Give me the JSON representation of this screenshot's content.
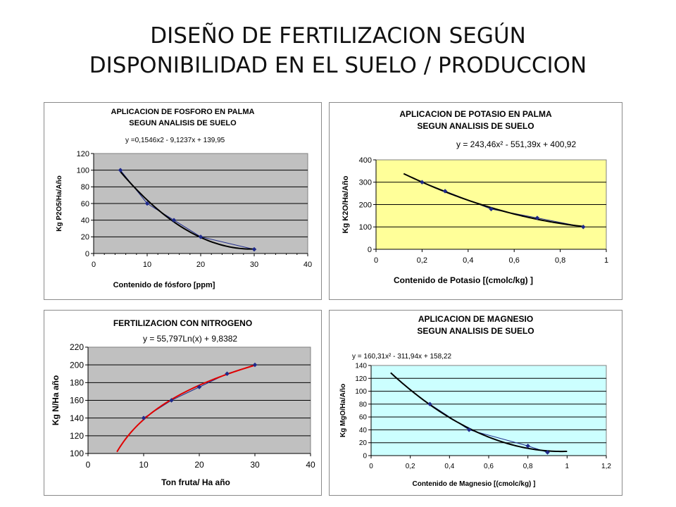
{
  "slide": {
    "title_line1": "DISEÑO DE FERTILIZACION SEGÚN",
    "title_line2": "DISPONIBILIDAD EN EL SUELO / PRODUCCION"
  },
  "colors": {
    "phosphorus_bg": "#c0c0c0",
    "potassium_bg": "#ffff99",
    "nitrogen_bg": "#c0c0c0",
    "magnesium_bg": "#ccffff",
    "marker": "#1f2a8a",
    "nitrogen_trend": "#e00000",
    "trend": "#000000"
  },
  "chart_data": [
    {
      "type": "scatter",
      "id": "phosphorus",
      "title": [
        "APLICACION DE FOSFORO EN PALMA",
        "SEGUN ANALISIS DE SUELO"
      ],
      "equation": "y =0,1546x2 - 9,1237x + 139,95",
      "xlabel": "Contenido de fósforo [ppm]",
      "ylabel": "Kg P2O5/Ha/Año",
      "xlim": [
        0,
        40
      ],
      "ylim": [
        0,
        120
      ],
      "xticks": [
        0,
        10,
        20,
        30,
        40
      ],
      "yticks": [
        0,
        20,
        40,
        60,
        80,
        100,
        120
      ],
      "xtick_labels": [
        "0",
        "10",
        "20",
        "30",
        "40"
      ],
      "ytick_labels": [
        "0",
        "20",
        "40",
        "60",
        "80",
        "100",
        "120"
      ],
      "minor_ticks": true,
      "x": [
        5,
        10,
        15,
        20,
        30
      ],
      "y": [
        100,
        60,
        40,
        20,
        5
      ],
      "trend": {
        "kind": "poly2",
        "coeffs": [
          0.1546,
          -9.1237,
          139.95
        ],
        "range": [
          5,
          30
        ]
      }
    },
    {
      "type": "scatter",
      "id": "potassium",
      "title": [
        "APLICACION DE POTASIO EN PALMA",
        "SEGUN ANALISIS DE SUELO"
      ],
      "equation": "y = 243,46x² - 551,39x + 400,92",
      "xlabel": "Contenido de Potasio [(cmolc/kg) ]",
      "ylabel": "Kg K2O/Ha/Año",
      "xlim": [
        0,
        1
      ],
      "ylim": [
        0,
        400
      ],
      "xticks": [
        0,
        0.2,
        0.4,
        0.6,
        0.8,
        1
      ],
      "yticks": [
        0,
        100,
        200,
        300,
        400
      ],
      "xtick_labels": [
        "0",
        "0,2",
        "0,4",
        "0,6",
        "0,8",
        "1"
      ],
      "ytick_labels": [
        "0",
        "100",
        "200",
        "300",
        "400"
      ],
      "minor_ticks": false,
      "x": [
        0.2,
        0.3,
        0.5,
        0.7,
        0.9
      ],
      "y": [
        300,
        260,
        180,
        140,
        100
      ],
      "trend": {
        "kind": "poly2",
        "coeffs": [
          243.46,
          -551.39,
          400.92
        ],
        "range": [
          0.12,
          0.9
        ]
      }
    },
    {
      "type": "scatter",
      "id": "nitrogen",
      "title": [
        "FERTILIZACION CON NITROGENO"
      ],
      "equation": "y = 55,797Ln(x) + 9,8382",
      "xlabel": "Ton fruta/ Ha año",
      "ylabel": "Kg N/Ha año",
      "xlim": [
        0,
        40
      ],
      "ylim": [
        100,
        220
      ],
      "xticks": [
        0,
        10,
        20,
        30,
        40
      ],
      "yticks": [
        100,
        120,
        140,
        160,
        180,
        200,
        220
      ],
      "xtick_labels": [
        "0",
        "10",
        "20",
        "30",
        "40"
      ],
      "ytick_labels": [
        "100",
        "120",
        "140",
        "160",
        "180",
        "200",
        "220"
      ],
      "minor_ticks": false,
      "x": [
        10,
        15,
        20,
        25,
        30
      ],
      "y": [
        140,
        160,
        175,
        190,
        200
      ],
      "trend": {
        "kind": "log",
        "coeffs": [
          55.797,
          9.8382
        ],
        "range": [
          5.2,
          30
        ]
      }
    },
    {
      "type": "scatter",
      "id": "magnesium",
      "title": [
        "APLICACION DE MAGNESIO",
        "SEGUN ANALISIS DE SUELO"
      ],
      "equation": "y = 160,31x² - 311,94x + 158,22",
      "xlabel": "Contenido de Magnesio [(cmolc/kg) ]",
      "ylabel": "Kg MgO/Ha/Año",
      "xlim": [
        0,
        1.2
      ],
      "ylim": [
        0,
        140
      ],
      "xticks": [
        0,
        0.2,
        0.4,
        0.6,
        0.8,
        1,
        1.2
      ],
      "yticks": [
        0,
        20,
        40,
        60,
        80,
        100,
        120,
        140
      ],
      "xtick_labels": [
        "0",
        "0,2",
        "0,4",
        "0,6",
        "0,8",
        "1",
        "1,2"
      ],
      "ytick_labels": [
        "0",
        "20",
        "40",
        "60",
        "80",
        "100",
        "120",
        "140"
      ],
      "minor_ticks": false,
      "x": [
        0.3,
        0.5,
        0.8,
        0.9
      ],
      "y": [
        80,
        40,
        15,
        5
      ],
      "trend": {
        "kind": "poly2",
        "coeffs": [
          160.31,
          -311.94,
          158.22
        ],
        "range": [
          0.1,
          1.0
        ]
      }
    }
  ]
}
